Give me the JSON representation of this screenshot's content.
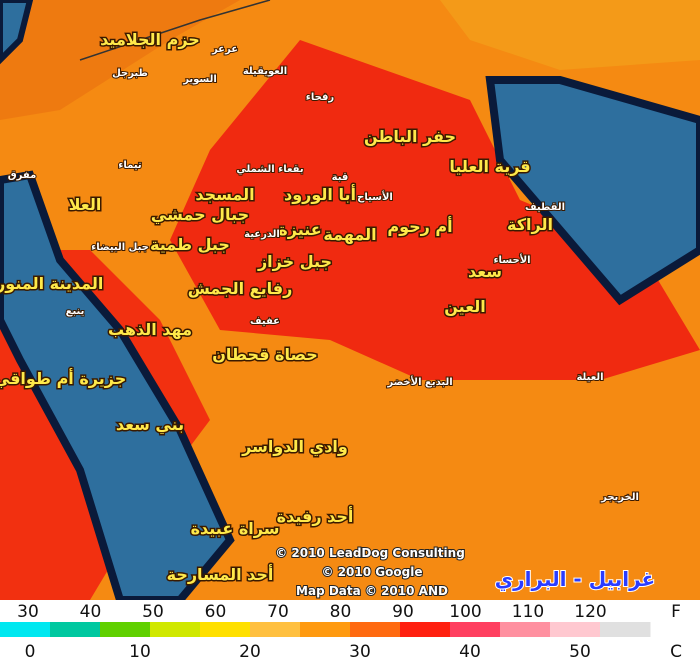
{
  "labels": [
    "حزم الجلاميد",
    "عرعر",
    "طبرجل",
    "السوير",
    "العويقيلة",
    "رفحاء",
    "حفر الباطن",
    "قرية العليا",
    "تيماء",
    "مفرق",
    "بقعاء الشملي",
    "قبة",
    "العلا",
    "أبا الورود",
    "المسجد",
    "الأسياح",
    "جبال حمشي",
    "عنيزة",
    "أم رحوم",
    "الراكة",
    "القطيف",
    "الدرعية",
    "المهمة",
    "جبل طمية",
    "جبل البيضاء",
    "جبل خزاز",
    "سعد",
    "الأحساء",
    "المدينة المنورة",
    "ينبع",
    "رفايع الجمش",
    "العين",
    "مهد الذهب",
    "عفيف",
    "حصاة قحطان",
    "جزيرة أم طواقي",
    "البديع الأخضر",
    "العيلة",
    "بني سعد",
    "وادي الدواسر",
    "أحد رفيدة",
    "سراة عبيدة",
    "أحد المسارحة",
    "الخريجر"
  ],
  "copyright": [
    "© 2010 LeadDog Consulting",
    "© 2010 Google",
    "Map Data © 2010 AND"
  ],
  "watermark": "غرابيل - البراري",
  "legend": {
    "fahrenheit_ticks": [
      30,
      40,
      50,
      60,
      70,
      80,
      90,
      100,
      110,
      120
    ],
    "fahrenheit_unit": "F",
    "celsius_ticks": [
      0,
      10,
      20,
      30,
      40,
      50
    ],
    "celsius_unit": "C"
  }
}
